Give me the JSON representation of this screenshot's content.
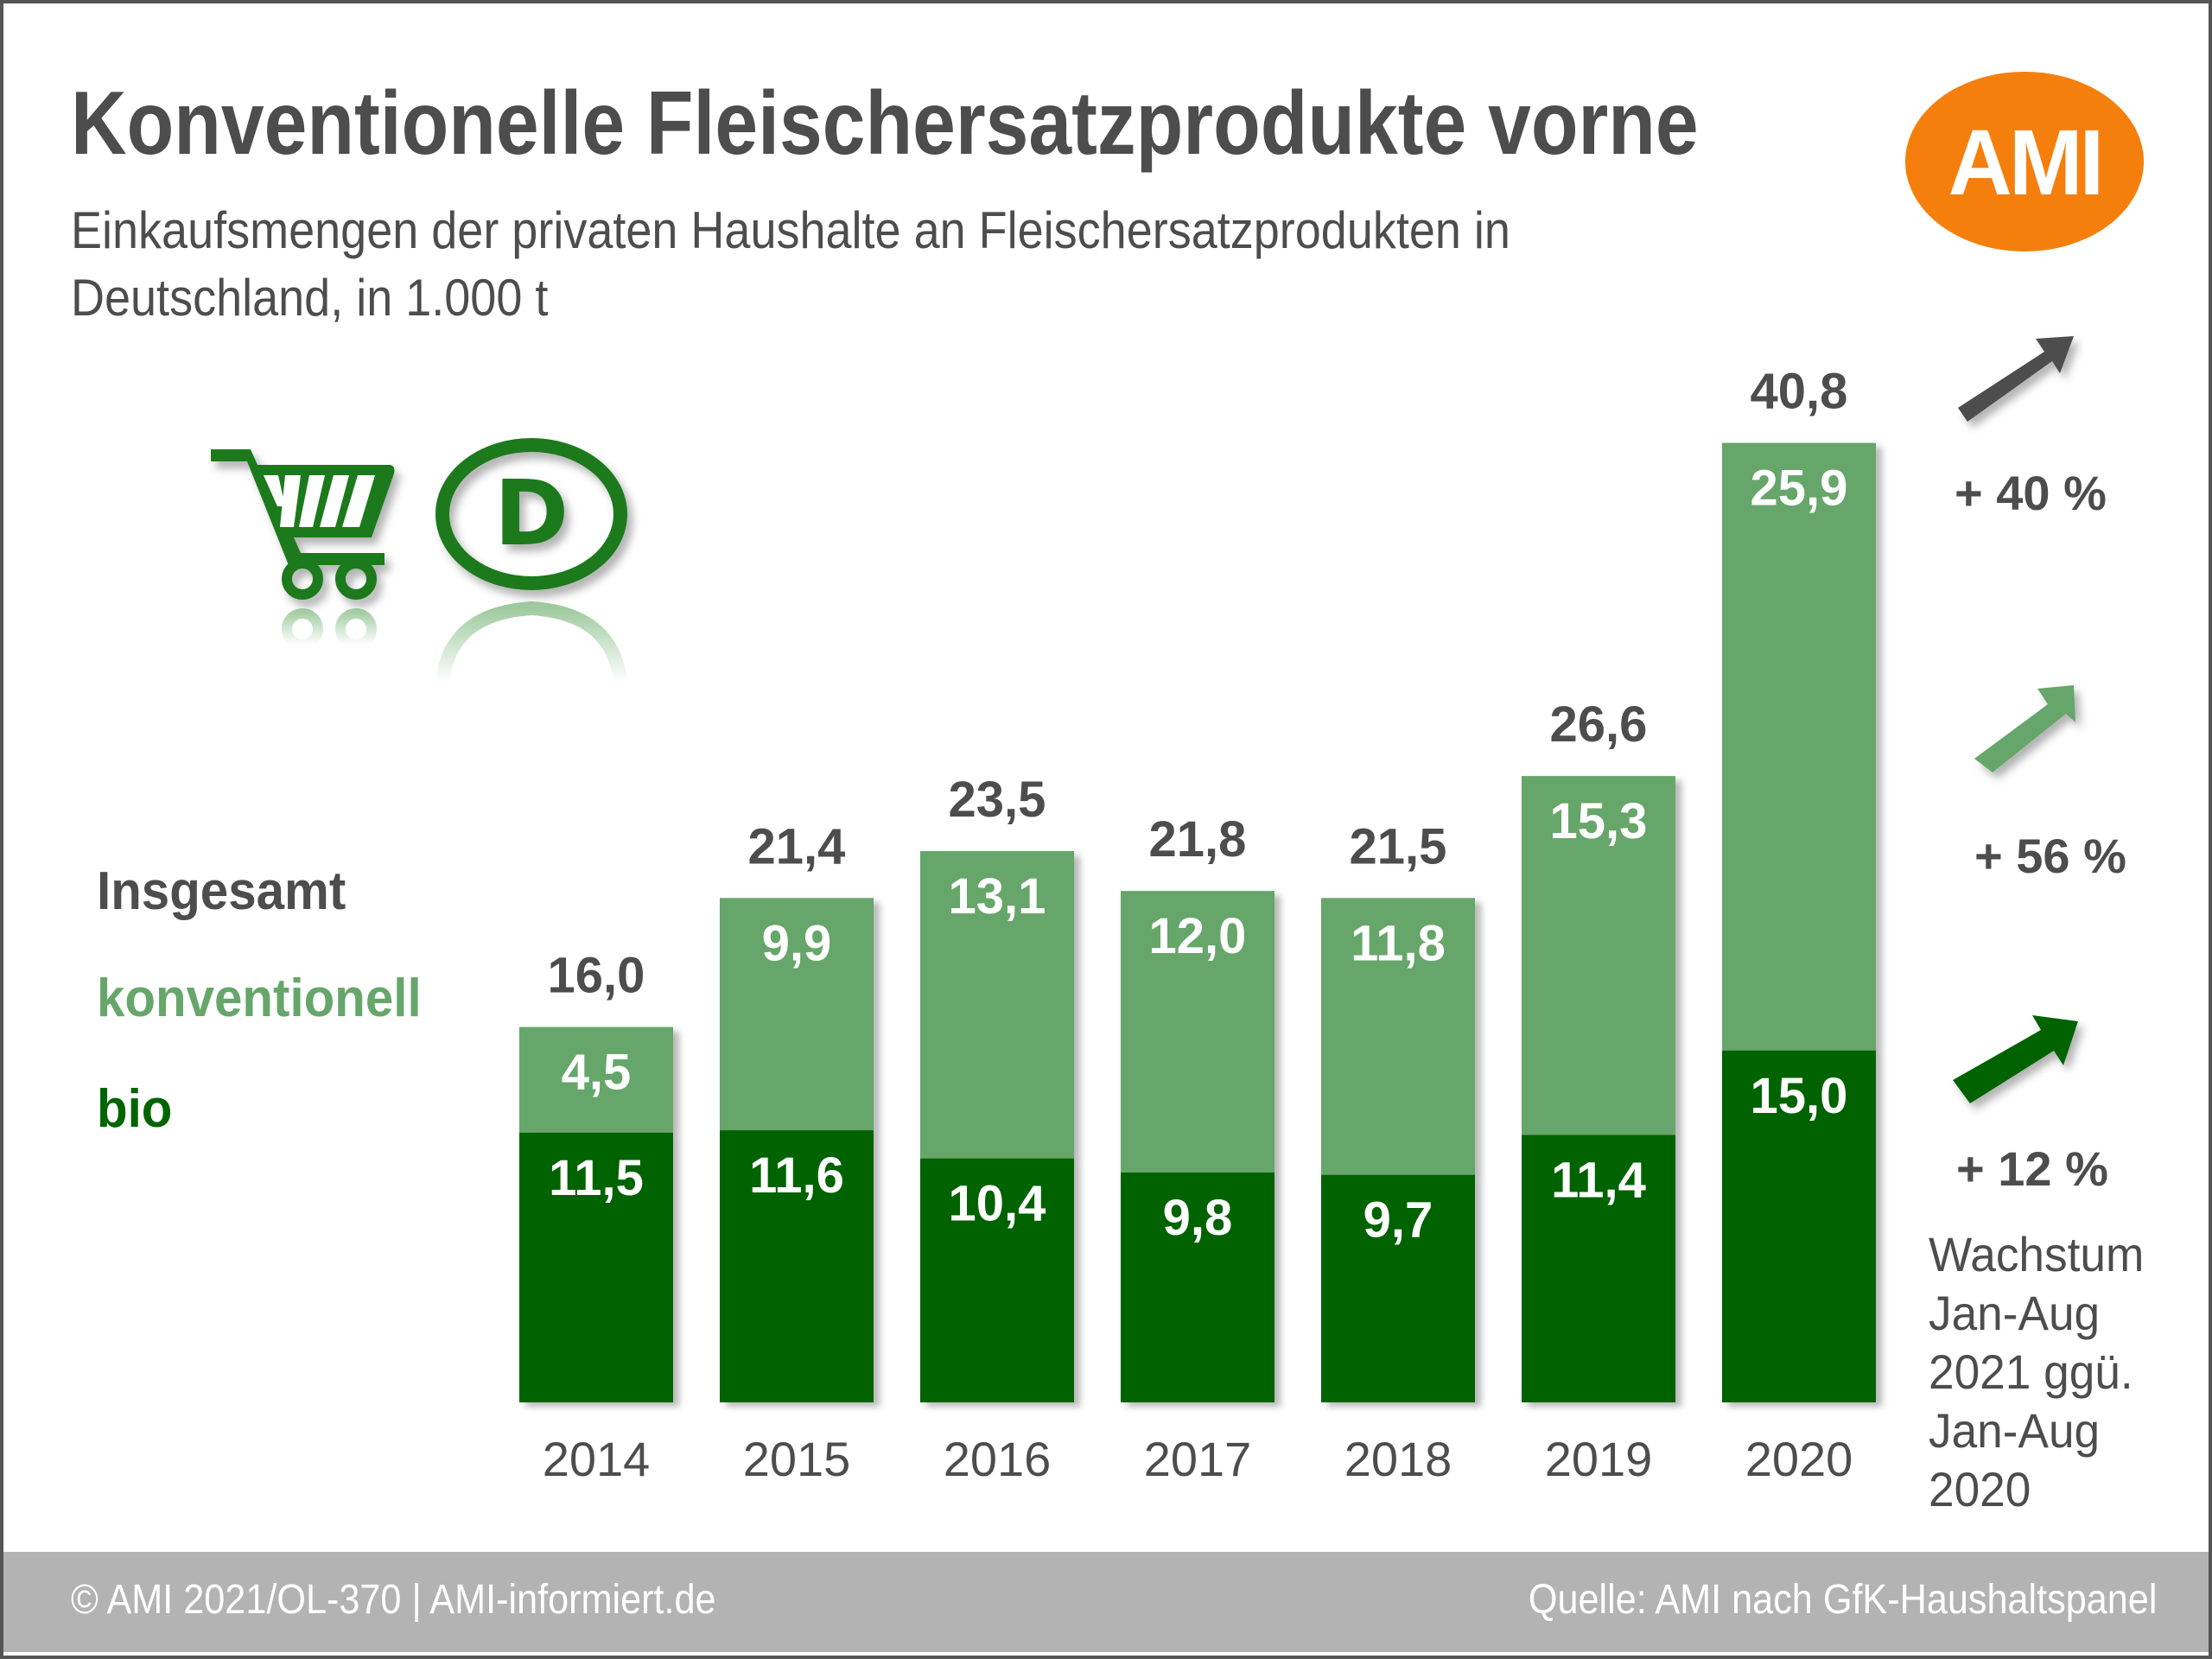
{
  "header": {
    "title": "Konventionelle Fleischersatzprodukte vorne",
    "subtitle_line1": "Einkaufsmengen der privaten Haushalte an Fleischersatzprodukten in",
    "subtitle_line2": "Deutschland, in 1.000 t",
    "logo_text": "AMI"
  },
  "icons": {
    "cart": "shopping-cart-icon",
    "country": "country-code-d-icon",
    "country_letter": "D"
  },
  "legend": {
    "total_label": "Insgesamt",
    "conventional_label": "konventionell",
    "organic_label": "bio"
  },
  "colors": {
    "text": "#4d4d4d",
    "conventional": "#66a66a",
    "organic": "#006400",
    "logo": "#f57f0d",
    "footer": "#b3b3b3"
  },
  "growth": {
    "total": "+ 40 %",
    "conventional": "+ 56 %",
    "organic": "+ 12 %",
    "note_lines": [
      "Wachstum",
      "Jan-Aug",
      "2021 ggü.",
      "Jan-Aug",
      "2020"
    ]
  },
  "footer": {
    "left": "© AMI 2021/OL-370 | AMI-informiert.de",
    "right": "Quelle: AMI nach GfK-Haushaltspanel"
  },
  "chart_data": {
    "type": "bar",
    "stacked": true,
    "title": "Konventionelle Fleischersatzprodukte vorne",
    "subtitle": "Einkaufsmengen der privaten Haushalte an Fleischersatzprodukten in Deutschland, in 1.000 t",
    "xlabel": "",
    "ylabel": "1.000 t",
    "categories": [
      "2014",
      "2015",
      "2016",
      "2017",
      "2018",
      "2019",
      "2020"
    ],
    "series": [
      {
        "name": "bio",
        "color": "#006400",
        "values": [
          11.5,
          11.6,
          10.4,
          9.8,
          9.7,
          11.4,
          15.0
        ],
        "labels": [
          "11,5",
          "11,6",
          "10,4",
          "9,8",
          "9,7",
          "11,4",
          "15,0"
        ]
      },
      {
        "name": "konventionell",
        "color": "#66a66a",
        "values": [
          4.5,
          9.9,
          13.1,
          12.0,
          11.8,
          15.3,
          25.9
        ],
        "labels": [
          "4,5",
          "9,9",
          "13,1",
          "12,0",
          "11,8",
          "15,3",
          "25,9"
        ]
      }
    ],
    "totals": {
      "name": "Insgesamt",
      "values": [
        16.0,
        21.4,
        23.5,
        21.8,
        21.5,
        26.6,
        40.8
      ],
      "labels": [
        "16,0",
        "21,4",
        "23,5",
        "21,8",
        "21,5",
        "26,6",
        "40,8"
      ]
    },
    "ylim": [
      0,
      41
    ],
    "grid": false,
    "legend_position": "left",
    "annotations": [
      {
        "series": "Insgesamt",
        "text": "+ 40 %"
      },
      {
        "series": "konventionell",
        "text": "+ 56 %"
      },
      {
        "series": "bio",
        "text": "+ 12 %"
      },
      {
        "text": "Wachstum Jan-Aug 2021 ggü. Jan-Aug 2020"
      }
    ]
  }
}
